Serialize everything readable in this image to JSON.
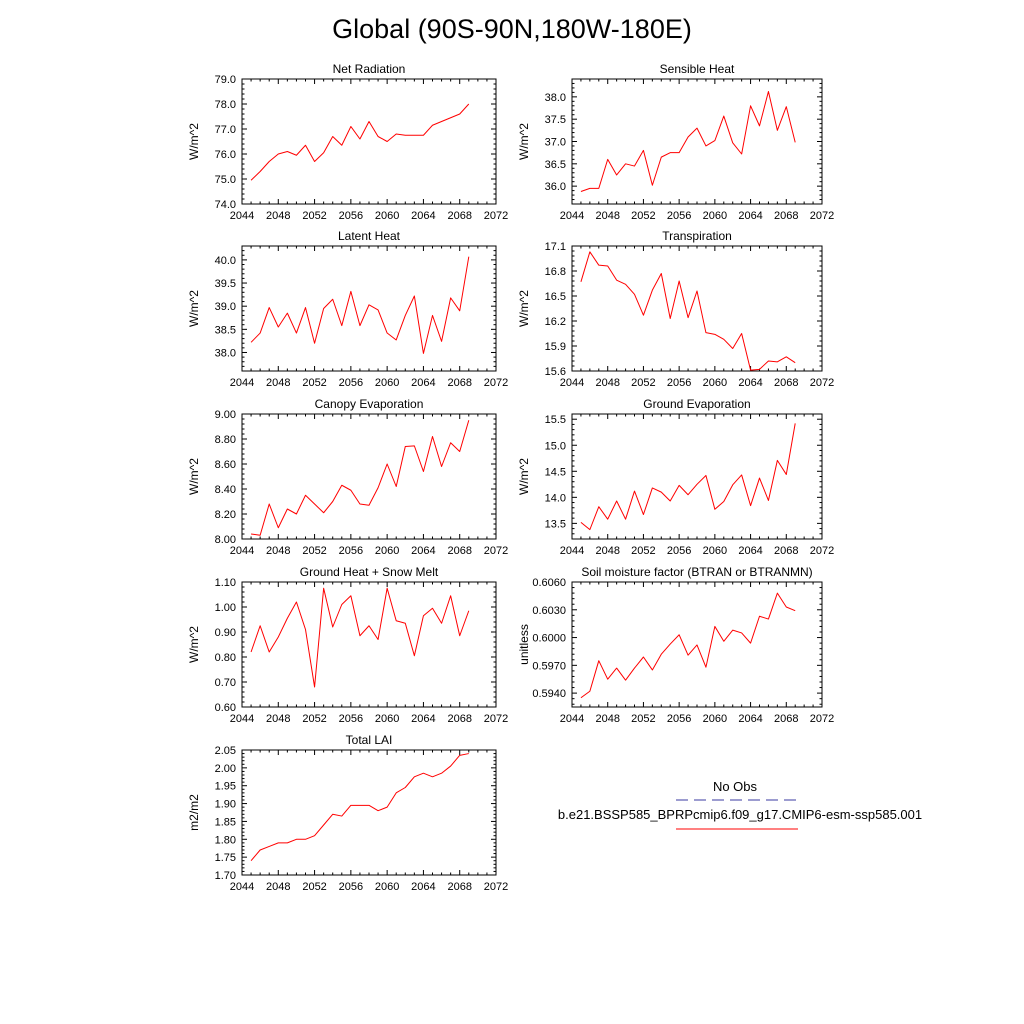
{
  "title": "Global (90S-90N,180W-180E)",
  "colors": {
    "model": "#ff0000",
    "obs": "#3a3aa0",
    "axis": "#000000"
  },
  "legend": {
    "obs_label": "No Obs",
    "model_label": "b.e21.BSSP585_BPRPcmip6.f09_g17.CMIP6-esm-ssp585.001"
  },
  "chart_data": [
    {
      "type": "line",
      "title": "Net Radiation",
      "xlabel": "",
      "ylabel": "W/m^2",
      "xlim": [
        2044,
        2072
      ],
      "ylim": [
        74.0,
        79.0
      ],
      "xticks": [
        2044,
        2048,
        2052,
        2056,
        2060,
        2064,
        2068,
        2072
      ],
      "yticks": [
        "74.0",
        "75.0",
        "76.0",
        "77.0",
        "78.0",
        "79.0"
      ],
      "x": [
        2045,
        2046,
        2047,
        2048,
        2049,
        2050,
        2051,
        2052,
        2053,
        2054,
        2055,
        2056,
        2057,
        2058,
        2059,
        2060,
        2061,
        2062,
        2063,
        2064,
        2065,
        2066,
        2067,
        2068,
        2069
      ],
      "series": [
        {
          "values": [
            74.95,
            75.3,
            75.7,
            76.0,
            76.1,
            75.95,
            76.35,
            75.7,
            76.05,
            76.7,
            76.35,
            77.1,
            76.6,
            77.3,
            76.7,
            76.5,
            76.8,
            76.75,
            76.75,
            76.75,
            77.15,
            77.3,
            77.45,
            77.6,
            78.0
          ]
        }
      ]
    },
    {
      "type": "line",
      "title": "Sensible Heat",
      "xlabel": "",
      "ylabel": "W/m^2",
      "xlim": [
        2044,
        2072
      ],
      "ylim": [
        35.6,
        38.4
      ],
      "xticks": [
        2044,
        2048,
        2052,
        2056,
        2060,
        2064,
        2068,
        2072
      ],
      "yticks": [
        "36.0",
        "36.5",
        "37.0",
        "37.5",
        "38.0"
      ],
      "x": [
        2045,
        2046,
        2047,
        2048,
        2049,
        2050,
        2051,
        2052,
        2053,
        2054,
        2055,
        2056,
        2057,
        2058,
        2059,
        2060,
        2061,
        2062,
        2063,
        2064,
        2065,
        2066,
        2067,
        2068,
        2069
      ],
      "series": [
        {
          "values": [
            35.88,
            35.95,
            35.95,
            36.6,
            36.25,
            36.5,
            36.45,
            36.8,
            36.02,
            36.65,
            36.75,
            36.75,
            37.1,
            37.3,
            36.9,
            37.02,
            37.57,
            36.97,
            36.72,
            37.8,
            37.35,
            38.12,
            37.25,
            37.78,
            36.98
          ]
        }
      ]
    },
    {
      "type": "line",
      "title": "Latent Heat",
      "xlabel": "",
      "ylabel": "W/m^2",
      "xlim": [
        2044,
        2072
      ],
      "ylim": [
        37.6,
        40.3
      ],
      "xticks": [
        2044,
        2048,
        2052,
        2056,
        2060,
        2064,
        2068,
        2072
      ],
      "yticks": [
        "38.0",
        "38.5",
        "39.0",
        "39.5",
        "40.0"
      ],
      "x": [
        2045,
        2046,
        2047,
        2048,
        2049,
        2050,
        2051,
        2052,
        2053,
        2054,
        2055,
        2056,
        2057,
        2058,
        2059,
        2060,
        2061,
        2062,
        2063,
        2064,
        2065,
        2066,
        2067,
        2068,
        2069
      ],
      "series": [
        {
          "values": [
            38.22,
            38.42,
            38.97,
            38.55,
            38.85,
            38.42,
            38.97,
            38.2,
            38.95,
            39.15,
            38.58,
            39.32,
            38.58,
            39.03,
            38.92,
            38.42,
            38.27,
            38.8,
            39.22,
            37.98,
            38.8,
            38.24,
            39.18,
            38.9,
            40.07
          ]
        }
      ]
    },
    {
      "type": "line",
      "title": "Transpiration",
      "xlabel": "",
      "ylabel": "W/m^2",
      "xlim": [
        2044,
        2072
      ],
      "ylim": [
        15.6,
        17.1
      ],
      "xticks": [
        2044,
        2048,
        2052,
        2056,
        2060,
        2064,
        2068,
        2072
      ],
      "yticks": [
        "15.6",
        "15.9",
        "16.2",
        "16.5",
        "16.8",
        "17.1"
      ],
      "x": [
        2045,
        2046,
        2047,
        2048,
        2049,
        2050,
        2051,
        2052,
        2053,
        2054,
        2055,
        2056,
        2057,
        2058,
        2059,
        2060,
        2061,
        2062,
        2063,
        2064,
        2065,
        2066,
        2067,
        2068,
        2069
      ],
      "series": [
        {
          "values": [
            16.67,
            17.03,
            16.87,
            16.86,
            16.69,
            16.64,
            16.52,
            16.27,
            16.57,
            16.77,
            16.23,
            16.68,
            16.24,
            16.56,
            16.06,
            16.04,
            15.98,
            15.87,
            16.05,
            15.61,
            15.62,
            15.72,
            15.71,
            15.77,
            15.7
          ]
        }
      ]
    },
    {
      "type": "line",
      "title": "Canopy Evaporation",
      "xlabel": "",
      "ylabel": "W/m^2",
      "xlim": [
        2044,
        2072
      ],
      "ylim": [
        8.0,
        9.0
      ],
      "xticks": [
        2044,
        2048,
        2052,
        2056,
        2060,
        2064,
        2068,
        2072
      ],
      "yticks": [
        "8.00",
        "8.20",
        "8.40",
        "8.60",
        "8.80",
        "9.00"
      ],
      "x": [
        2045,
        2046,
        2047,
        2048,
        2049,
        2050,
        2051,
        2052,
        2053,
        2054,
        2055,
        2056,
        2057,
        2058,
        2059,
        2060,
        2061,
        2062,
        2063,
        2064,
        2065,
        2066,
        2067,
        2068,
        2069
      ],
      "series": [
        {
          "values": [
            8.04,
            8.03,
            8.28,
            8.09,
            8.24,
            8.2,
            8.35,
            8.28,
            8.21,
            8.3,
            8.43,
            8.39,
            8.28,
            8.27,
            8.41,
            8.6,
            8.42,
            8.74,
            8.745,
            8.54,
            8.82,
            8.58,
            8.77,
            8.7,
            8.95
          ]
        }
      ]
    },
    {
      "type": "line",
      "title": "Ground Evaporation",
      "xlabel": "",
      "ylabel": "W/m^2",
      "xlim": [
        2044,
        2072
      ],
      "ylim": [
        13.2,
        15.6
      ],
      "xticks": [
        2044,
        2048,
        2052,
        2056,
        2060,
        2064,
        2068,
        2072
      ],
      "yticks": [
        "13.5",
        "14.0",
        "14.5",
        "15.0",
        "15.5"
      ],
      "x": [
        2045,
        2046,
        2047,
        2048,
        2049,
        2050,
        2051,
        2052,
        2053,
        2054,
        2055,
        2056,
        2057,
        2058,
        2059,
        2060,
        2061,
        2062,
        2063,
        2064,
        2065,
        2066,
        2067,
        2068,
        2069
      ],
      "series": [
        {
          "values": [
            13.52,
            13.38,
            13.82,
            13.58,
            13.93,
            13.58,
            14.12,
            13.67,
            14.18,
            14.1,
            13.93,
            14.23,
            14.05,
            14.25,
            14.42,
            13.77,
            13.92,
            14.24,
            14.43,
            13.84,
            14.37,
            13.94,
            14.71,
            14.44,
            15.42
          ]
        }
      ]
    },
    {
      "type": "line",
      "title": "Ground Heat + Snow Melt",
      "xlabel": "",
      "ylabel": "W/m^2",
      "xlim": [
        2044,
        2072
      ],
      "ylim": [
        0.6,
        1.1
      ],
      "xticks": [
        2044,
        2048,
        2052,
        2056,
        2060,
        2064,
        2068,
        2072
      ],
      "yticks": [
        "0.60",
        "0.70",
        "0.80",
        "0.90",
        "1.00",
        "1.10"
      ],
      "x": [
        2045,
        2046,
        2047,
        2048,
        2049,
        2050,
        2051,
        2052,
        2053,
        2054,
        2055,
        2056,
        2057,
        2058,
        2059,
        2060,
        2061,
        2062,
        2063,
        2064,
        2065,
        2066,
        2067,
        2068,
        2069
      ],
      "series": [
        {
          "values": [
            0.82,
            0.925,
            0.82,
            0.88,
            0.955,
            1.02,
            0.91,
            0.68,
            1.075,
            0.92,
            1.01,
            1.045,
            0.885,
            0.925,
            0.87,
            1.075,
            0.945,
            0.935,
            0.805,
            0.965,
            0.995,
            0.935,
            1.045,
            0.885,
            0.985
          ]
        }
      ]
    },
    {
      "type": "line",
      "title": "Soil moisture factor (BTRAN or BTRANMN)",
      "xlabel": "",
      "ylabel": "unitless",
      "xlim": [
        2044,
        2072
      ],
      "ylim": [
        0.5925,
        0.606
      ],
      "xticks": [
        2044,
        2048,
        2052,
        2056,
        2060,
        2064,
        2068,
        2072
      ],
      "yticks": [
        "0.5940",
        "0.5970",
        "0.6000",
        "0.6030",
        "0.6060"
      ],
      "x": [
        2045,
        2046,
        2047,
        2048,
        2049,
        2050,
        2051,
        2052,
        2053,
        2054,
        2055,
        2056,
        2057,
        2058,
        2059,
        2060,
        2061,
        2062,
        2063,
        2064,
        2065,
        2066,
        2067,
        2068,
        2069
      ],
      "series": [
        {
          "values": [
            0.5935,
            0.5942,
            0.5975,
            0.5955,
            0.5967,
            0.5954,
            0.5967,
            0.5979,
            0.5965,
            0.5982,
            0.5993,
            0.6003,
            0.5981,
            0.5992,
            0.5968,
            0.6012,
            0.5996,
            0.6008,
            0.6005,
            0.5994,
            0.6023,
            0.602,
            0.6048,
            0.6033,
            0.6029
          ]
        }
      ]
    },
    {
      "type": "line",
      "title": "Total LAI",
      "xlabel": "",
      "ylabel": "m2/m2",
      "xlim": [
        2044,
        2072
      ],
      "ylim": [
        1.7,
        2.05
      ],
      "xticks": [
        2044,
        2048,
        2052,
        2056,
        2060,
        2064,
        2068,
        2072
      ],
      "yticks": [
        "1.70",
        "1.75",
        "1.80",
        "1.85",
        "1.90",
        "1.95",
        "2.00",
        "2.05"
      ],
      "x": [
        2045,
        2046,
        2047,
        2048,
        2049,
        2050,
        2051,
        2052,
        2053,
        2054,
        2055,
        2056,
        2057,
        2058,
        2059,
        2060,
        2061,
        2062,
        2063,
        2064,
        2065,
        2066,
        2067,
        2068,
        2069
      ],
      "series": [
        {
          "values": [
            1.74,
            1.77,
            1.78,
            1.79,
            1.79,
            1.8,
            1.8,
            1.81,
            1.84,
            1.87,
            1.865,
            1.895,
            1.895,
            1.895,
            1.88,
            1.89,
            1.93,
            1.945,
            1.975,
            1.985,
            1.975,
            1.985,
            2.005,
            2.035,
            2.04
          ]
        }
      ]
    }
  ]
}
